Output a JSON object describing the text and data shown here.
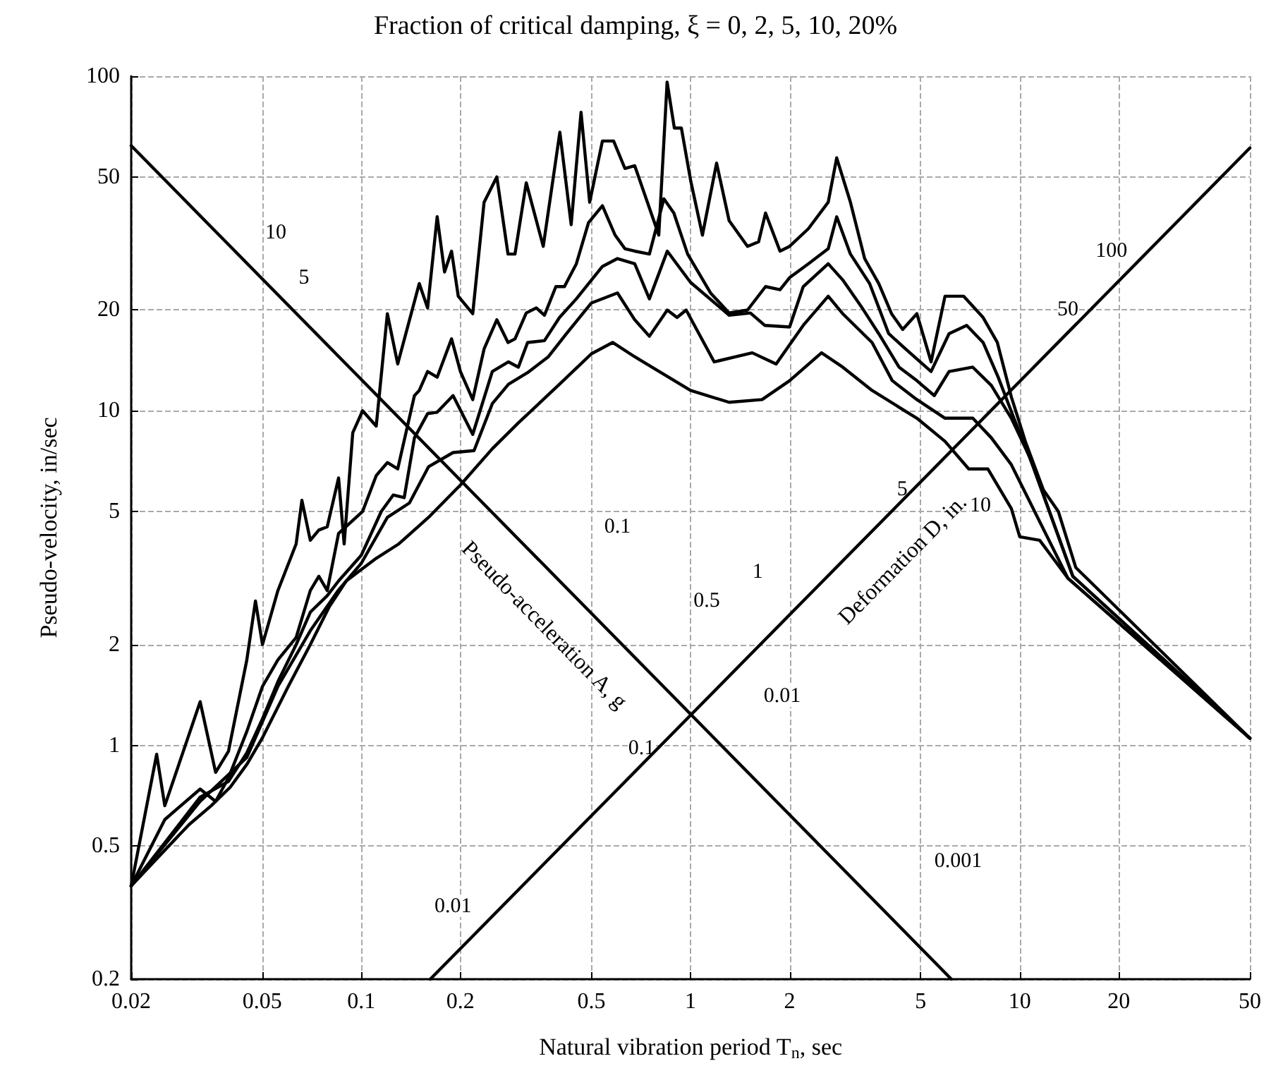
{
  "chart_data": {
    "type": "line",
    "title": "Fraction of critical damping, ξ = 0, 2, 5, 10, 20%",
    "xlabel": "Natural vibration period T$_{n}$, sec",
    "ylabel": "Pseudo-velocity, in/sec",
    "log": "xy",
    "grid": true,
    "marker": "none",
    "line_style": "solid",
    "xlim": [
      0.02,
      50
    ],
    "xticks": [
      0.02,
      0.05,
      0.1,
      0.2,
      0.5,
      1,
      2,
      5,
      10,
      20,
      50
    ],
    "ylim": [
      0.2,
      100
    ],
    "yticks": [
      0.2,
      0.5,
      1,
      2,
      5,
      10,
      20,
      50,
      100
    ],
    "series": [
      {
        "color": "#000000",
        "x": [
          0.02,
          0.0239,
          0.0253,
          0.0324,
          0.0361,
          0.0395,
          0.0449,
          0.0477,
          0.0501,
          0.0558,
          0.0634,
          0.066,
          0.07,
          0.0743,
          0.0788,
          0.0853,
          0.0887,
          0.0942,
          0.1009,
          0.111,
          0.12,
          0.129,
          0.15,
          0.159,
          0.17,
          0.179,
          0.188,
          0.197,
          0.218,
          0.236,
          0.258,
          0.279,
          0.293,
          0.317,
          0.357,
          0.401,
          0.434,
          0.465,
          0.494,
          0.54,
          0.584,
          0.632,
          0.677,
          0.801,
          0.849,
          0.893,
          0.938,
          1.0,
          1.087,
          1.2,
          1.31,
          1.49,
          1.61,
          1.69,
          1.87,
          2.0,
          2.28,
          2.62,
          2.78,
          3.06,
          3.38,
          3.73,
          4.08,
          4.41,
          4.87,
          5.38,
          5.93,
          6.75,
          7.74,
          8.55,
          9.43,
          10.4,
          11.8,
          13.1,
          14.8,
          50
        ],
        "values": [
          0.38,
          0.94,
          0.66,
          1.35,
          0.83,
          0.96,
          1.8,
          2.7,
          2.0,
          2.9,
          4.0,
          5.4,
          4.1,
          4.4,
          4.5,
          6.3,
          4.0,
          8.6,
          10,
          9.0,
          19.5,
          13.8,
          24,
          20.3,
          38,
          26,
          30,
          22,
          19.5,
          42,
          50,
          29.4,
          29.4,
          48,
          31,
          68,
          36,
          78,
          42,
          64,
          64,
          53,
          54,
          33.5,
          96,
          70,
          70,
          49,
          33.5,
          55,
          37,
          31,
          32,
          39,
          30,
          31,
          35,
          42,
          57,
          42,
          28.5,
          24,
          19.5,
          17.5,
          19.5,
          14,
          22,
          22,
          19,
          16,
          11,
          8.1,
          5.8,
          5.0,
          3.4,
          1.05
        ]
      },
      {
        "color": "#000000",
        "x": [
          0.02,
          0.0253,
          0.0324,
          0.0361,
          0.0395,
          0.0449,
          0.0501,
          0.0558,
          0.0634,
          0.07,
          0.0743,
          0.0788,
          0.0853,
          0.1009,
          0.111,
          0.12,
          0.129,
          0.145,
          0.15,
          0.159,
          0.17,
          0.188,
          0.2,
          0.218,
          0.236,
          0.258,
          0.279,
          0.293,
          0.317,
          0.34,
          0.36,
          0.39,
          0.414,
          0.45,
          0.49,
          0.54,
          0.59,
          0.632,
          0.677,
          0.75,
          0.83,
          0.89,
          0.98,
          1.15,
          1.31,
          1.49,
          1.69,
          1.87,
          2.0,
          2.28,
          2.62,
          2.78,
          3.06,
          3.5,
          4.0,
          4.5,
          5.38,
          6.1,
          6.9,
          7.74,
          8.6,
          9.6,
          11,
          14.5,
          50
        ],
        "values": [
          0.38,
          0.6,
          0.74,
          0.68,
          0.8,
          1.1,
          1.5,
          1.8,
          2.1,
          2.9,
          3.2,
          2.9,
          4.3,
          5.0,
          6.4,
          7.0,
          6.7,
          11.1,
          11.5,
          13.1,
          12.6,
          16.4,
          13.1,
          10.8,
          15.3,
          18.7,
          16,
          16.4,
          19.6,
          20.3,
          19.3,
          23.5,
          23.5,
          27.5,
          36.5,
          41,
          33.5,
          30.5,
          30,
          29.4,
          43,
          39,
          29.4,
          22.5,
          19.6,
          20,
          23.5,
          23,
          25,
          27.5,
          30.5,
          38,
          29.4,
          24,
          17,
          15.3,
          13.1,
          17,
          18,
          16,
          12.6,
          9.5,
          6.8,
          3.2,
          1.05
        ]
      },
      {
        "color": "#000000",
        "x": [
          0.02,
          0.0324,
          0.0395,
          0.0449,
          0.0501,
          0.0558,
          0.0634,
          0.07,
          0.0788,
          0.0853,
          0.1,
          0.115,
          0.125,
          0.135,
          0.145,
          0.159,
          0.17,
          0.19,
          0.218,
          0.25,
          0.28,
          0.3,
          0.32,
          0.36,
          0.4,
          0.45,
          0.54,
          0.6,
          0.677,
          0.75,
          0.85,
          1.0,
          1.31,
          1.52,
          1.68,
          2.0,
          2.2,
          2.62,
          2.9,
          3.3,
          3.73,
          4.3,
          4.87,
          5.5,
          6.1,
          7.2,
          8.2,
          9.43,
          10.7,
          14.5,
          50
        ],
        "values": [
          0.38,
          0.7,
          0.78,
          0.95,
          1.2,
          1.55,
          2.0,
          2.5,
          2.8,
          3.1,
          3.7,
          5.0,
          5.6,
          5.5,
          8.3,
          9.8,
          9.9,
          11.1,
          8.5,
          13.1,
          14,
          13.5,
          16,
          16.2,
          19,
          21.6,
          27,
          28.5,
          27.5,
          21.6,
          30,
          24.2,
          19.3,
          19.6,
          18,
          17.8,
          23.5,
          27.5,
          24.6,
          20.5,
          17,
          13.5,
          12.3,
          11.1,
          13.1,
          13.5,
          11.9,
          9.5,
          7.3,
          3.2,
          1.05
        ]
      },
      {
        "color": "#000000",
        "x": [
          0.02,
          0.0324,
          0.0449,
          0.0558,
          0.07,
          0.085,
          0.1,
          0.12,
          0.14,
          0.16,
          0.19,
          0.22,
          0.25,
          0.28,
          0.32,
          0.37,
          0.42,
          0.5,
          0.6,
          0.677,
          0.75,
          0.85,
          0.91,
          0.97,
          1.18,
          1.54,
          1.82,
          2.2,
          2.62,
          2.9,
          3.56,
          4.1,
          4.87,
          5.93,
          7.2,
          8.2,
          9.43,
          14,
          50
        ],
        "values": [
          0.38,
          0.68,
          0.92,
          1.5,
          2.2,
          2.9,
          3.5,
          4.8,
          5.3,
          6.8,
          7.5,
          7.6,
          10.5,
          12,
          13,
          14.5,
          17,
          21,
          22.5,
          18.7,
          16.7,
          20,
          19,
          20,
          14.0,
          14.9,
          13.8,
          18,
          22,
          19.5,
          16,
          12.3,
          10.8,
          9.5,
          9.5,
          8.3,
          6.9,
          3.16,
          1.05
        ]
      },
      {
        "color": "#000000",
        "x": [
          0.02,
          0.025,
          0.03,
          0.035,
          0.04,
          0.045,
          0.05,
          0.06,
          0.07,
          0.08,
          0.09,
          0.11,
          0.13,
          0.16,
          0.2,
          0.25,
          0.3,
          0.4,
          0.5,
          0.58,
          0.677,
          1.0,
          1.31,
          1.65,
          2.0,
          2.5,
          2.9,
          3.56,
          4.87,
          5.93,
          7.0,
          8.0,
          9.43,
          10,
          11.5,
          14,
          50
        ],
        "values": [
          0.38,
          0.48,
          0.58,
          0.66,
          0.75,
          0.88,
          1.05,
          1.5,
          2.0,
          2.6,
          3.1,
          3.6,
          4.0,
          4.8,
          6.0,
          7.7,
          9.2,
          12,
          14.8,
          16,
          14.5,
          11.5,
          10.6,
          10.8,
          12.3,
          14.9,
          13.5,
          11.5,
          9.5,
          8.1,
          6.7,
          6.7,
          5.1,
          4.2,
          4.1,
          3.16,
          1.05
        ]
      },
      {
        "color": "#000000",
        "x": [
          0.02,
          6.2
        ],
        "values": [
          62,
          0.2
        ]
      },
      {
        "color": "#000000",
        "x": [
          0.162,
          50
        ],
        "values": [
          0.2,
          61
        ]
      }
    ],
    "annotations": [
      {
        "text": "10",
        "x": 0.055,
        "y": 34
      },
      {
        "text": "5",
        "x": 0.067,
        "y": 25
      },
      {
        "text": "0.1",
        "x": 0.6,
        "y": 4.5
      },
      {
        "text": "0.01",
        "x": 1.9,
        "y": 1.4
      },
      {
        "text": "0.001",
        "x": 6.5,
        "y": 0.45
      },
      {
        "text": "0.01",
        "x": 0.19,
        "y": 0.33
      },
      {
        "text": "0.1",
        "x": 0.71,
        "y": 0.98
      },
      {
        "text": "0.5",
        "x": 1.12,
        "y": 2.7
      },
      {
        "text": "1",
        "x": 1.6,
        "y": 3.3
      },
      {
        "text": "5",
        "x": 4.4,
        "y": 5.8
      },
      {
        "text": "10",
        "x": 7.6,
        "y": 5.2
      },
      {
        "text": "50",
        "x": 14,
        "y": 20
      },
      {
        "text": "100",
        "x": 19,
        "y": 30
      },
      "Pseudo-acceleration A, g",
      "Deformation D, in."
    ]
  }
}
